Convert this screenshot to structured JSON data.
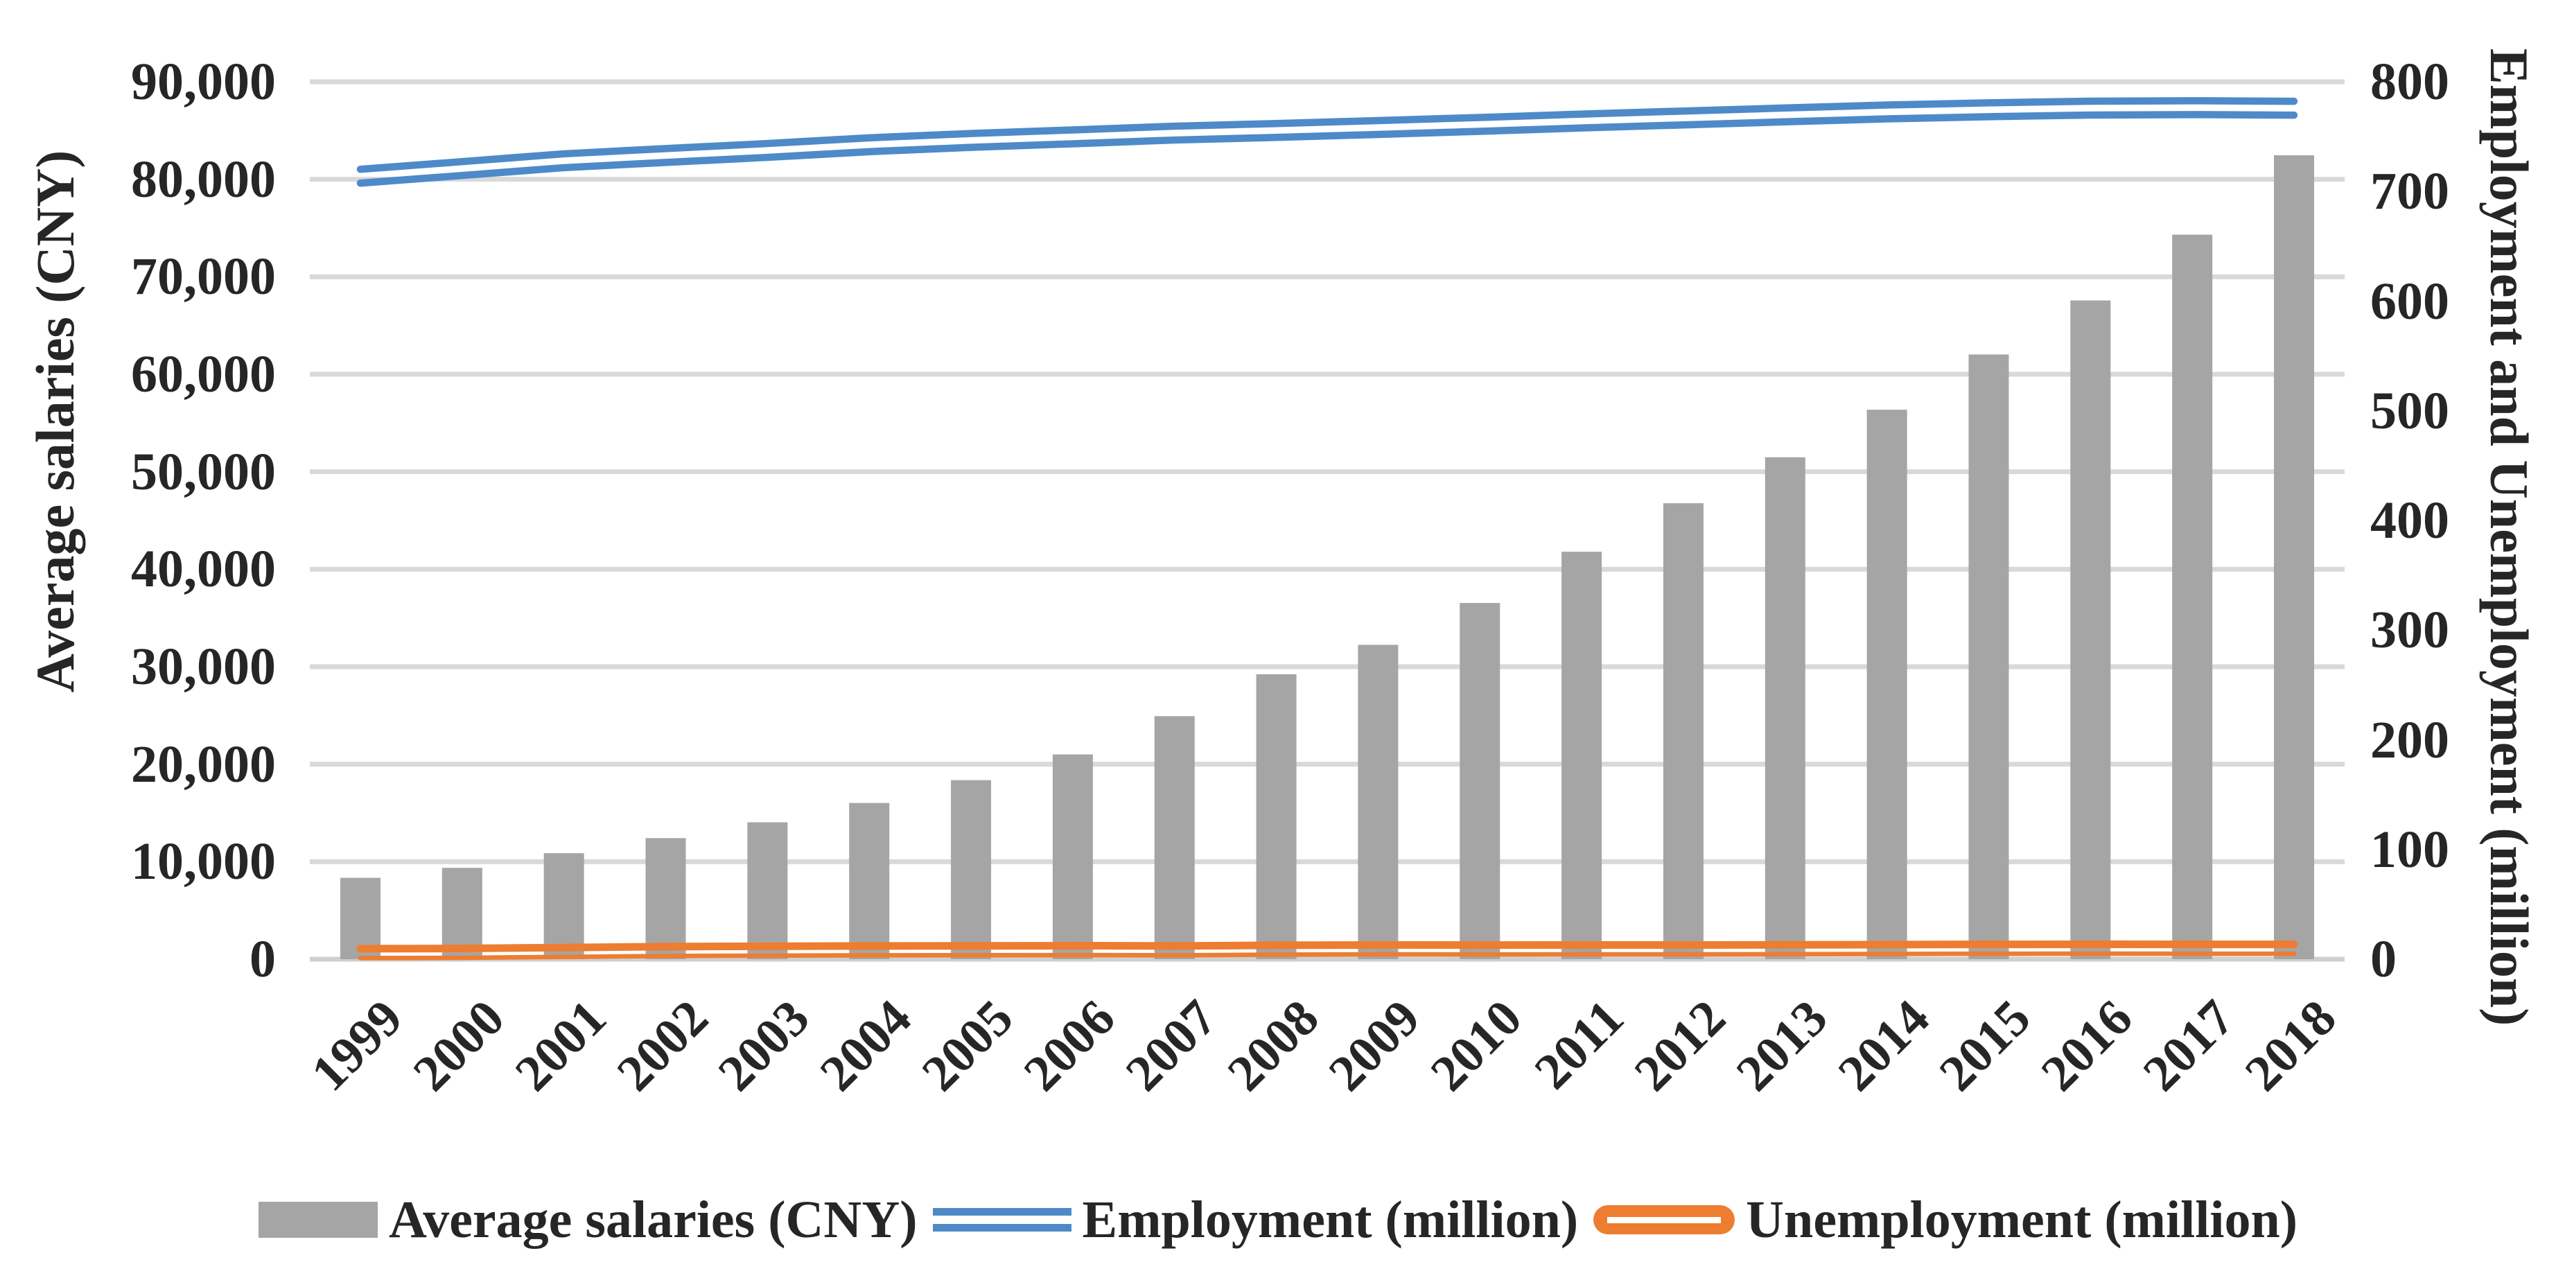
{
  "chart_data": {
    "type": "bar",
    "subtype": "combo-bar-line",
    "categories": [
      "1999",
      "2000",
      "2001",
      "2002",
      "2003",
      "2004",
      "2005",
      "2006",
      "2007",
      "2008",
      "2009",
      "2010",
      "2011",
      "2012",
      "2013",
      "2014",
      "2015",
      "2016",
      "2017",
      "2018"
    ],
    "series": [
      {
        "name": "Average salaries (CNY)",
        "chart_type": "bar",
        "axis": "left",
        "color": "#A5A5A5",
        "values": [
          8346,
          9371,
          10870,
          12422,
          14040,
          16024,
          18364,
          21001,
          24932,
          29229,
          32244,
          36539,
          41799,
          46769,
          51483,
          56360,
          62029,
          67569,
          74318,
          82461
        ]
      },
      {
        "name": "Employment (million)",
        "chart_type": "line",
        "line_style": "double",
        "axis": "right",
        "color": "#4E8AC8",
        "values": [
          713.9,
          720.9,
          728.0,
          732.8,
          737.4,
          742.6,
          746.5,
          749.8,
          753.2,
          755.6,
          758.3,
          761.1,
          764.2,
          767.0,
          769.8,
          772.5,
          774.5,
          776.0,
          776.4,
          775.9
        ]
      },
      {
        "name": "Unemployment (million)",
        "chart_type": "line",
        "line_style": "double",
        "axis": "right",
        "color": "#ED7D31",
        "values": [
          5.8,
          6.0,
          6.8,
          7.7,
          8.0,
          8.3,
          8.4,
          8.5,
          8.3,
          8.9,
          9.2,
          9.1,
          9.2,
          9.2,
          9.3,
          9.5,
          9.7,
          9.8,
          9.7,
          9.7
        ]
      }
    ],
    "left_axis": {
      "title": "Average salaries (CNY)",
      "min": 0,
      "max": 90000,
      "step": 10000,
      "tick_labels": [
        "0",
        "10,000",
        "20,000",
        "30,000",
        "40,000",
        "50,000",
        "60,000",
        "70,000",
        "80,000",
        "90,000"
      ]
    },
    "right_axis": {
      "title": "Employment and Unemployment (million)",
      "min": 0,
      "max": 800,
      "step": 100,
      "tick_labels": [
        "0",
        "100",
        "200",
        "300",
        "400",
        "500",
        "600",
        "700",
        "800"
      ]
    },
    "grid": true,
    "gridline_color": "#D9D9D9",
    "background_color": "#FFFFFF",
    "legend_position": "bottom"
  },
  "legend": {
    "items": [
      {
        "label": "Average salaries (CNY)",
        "swatch": "bar",
        "color": "#A5A5A5"
      },
      {
        "label": "Employment (million)",
        "swatch": "double-line",
        "color": "#4E8AC8"
      },
      {
        "label": "Unemployment (million)",
        "swatch": "double-line-rounded",
        "color": "#ED7D31"
      }
    ]
  }
}
